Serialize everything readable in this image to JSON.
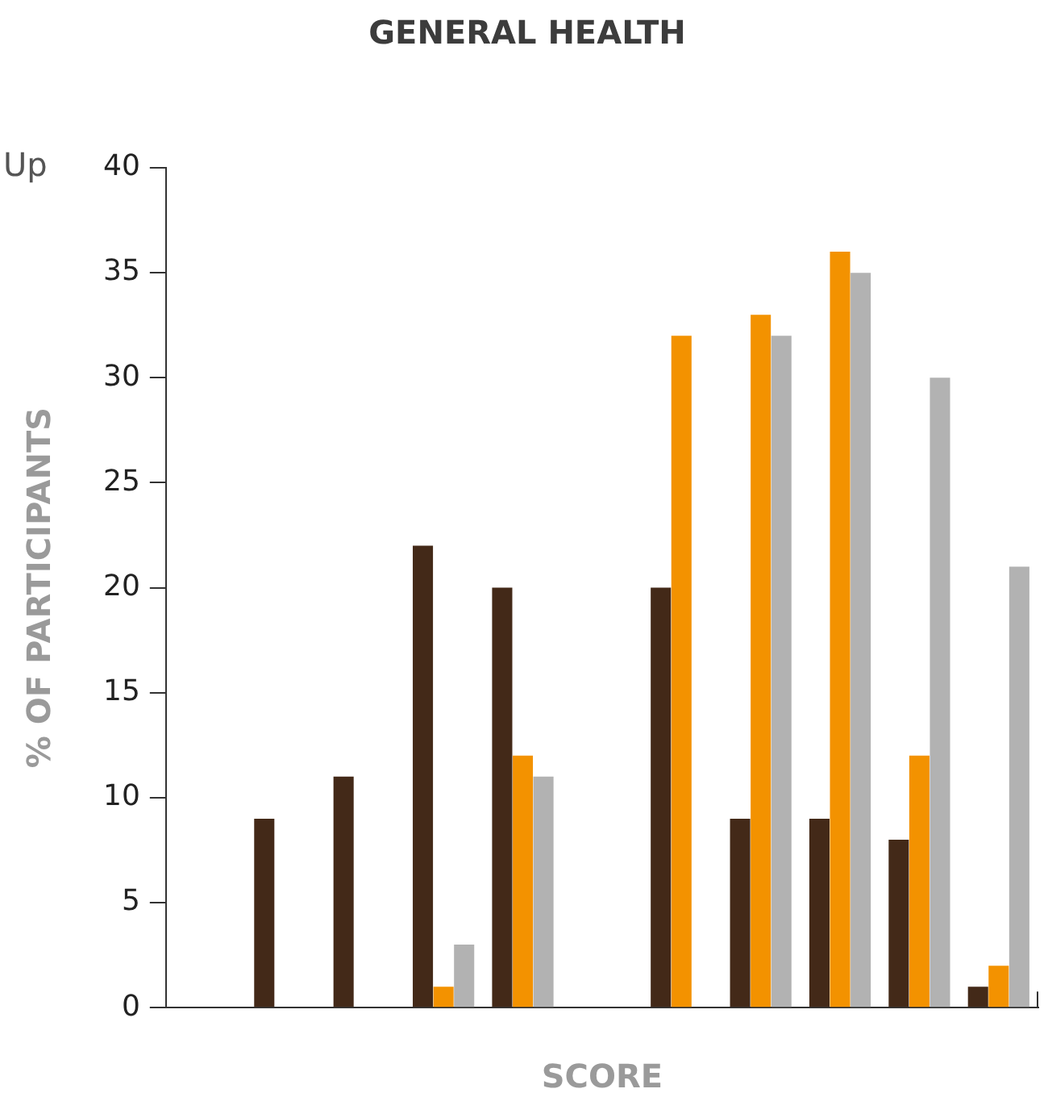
{
  "chart_data": {
    "type": "bar",
    "title": "GENERAL HEALTH",
    "xlabel": "SCORE",
    "ylabel": "% OF PARTICIPANTS",
    "annotations": [
      "Up"
    ],
    "categories": [
      null,
      null,
      null,
      null,
      null,
      null,
      null,
      null,
      null,
      null,
      null
    ],
    "series": [
      {
        "color": "#432918",
        "values": [
          0,
          9,
          11,
          22,
          20,
          0,
          20,
          9,
          9,
          8,
          1
        ]
      },
      {
        "color": "#f39200",
        "values": [
          0,
          0,
          0,
          1,
          12,
          0,
          32,
          33,
          36,
          12,
          2
        ]
      },
      {
        "color": "#b2b2b2",
        "values": [
          0,
          0,
          0,
          3,
          11,
          0,
          0,
          32,
          35,
          30,
          21
        ]
      }
    ],
    "ylim": [
      0,
      40
    ],
    "yticks": [
      0,
      5,
      10,
      15,
      20,
      25,
      30,
      35,
      40
    ],
    "grid": false,
    "legend": false
  }
}
